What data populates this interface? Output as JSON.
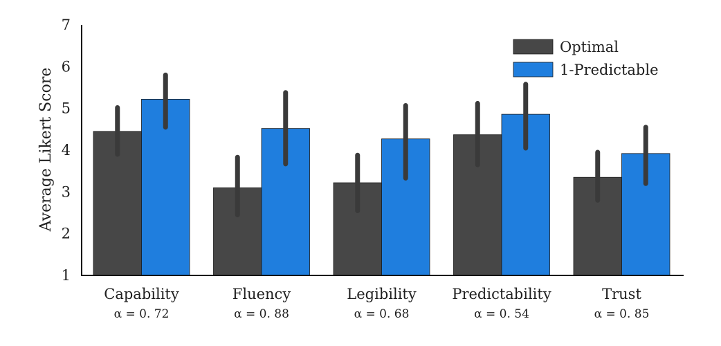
{
  "chart_data": {
    "type": "bar",
    "title": "",
    "xlabel": "",
    "ylabel": "Average Likert Score",
    "ylim": [
      1,
      7
    ],
    "yticks": [
      1,
      2,
      3,
      4,
      5,
      6,
      7
    ],
    "grid": false,
    "legend_position": "top-right",
    "categories": [
      "Capability",
      "Fluency",
      "Legibility",
      "Predictability",
      "Trust"
    ],
    "category_sublabels": [
      "α = 0. 72",
      "α = 0. 88",
      "α = 0. 68",
      "α = 0. 54",
      "α = 0. 85"
    ],
    "series": [
      {
        "name": "Optimal",
        "color": "#474747",
        "values": [
          4.45,
          3.1,
          3.22,
          4.37,
          3.35
        ],
        "error_low": [
          3.9,
          2.45,
          2.55,
          3.65,
          2.8
        ],
        "error_high": [
          5.02,
          3.83,
          3.88,
          5.12,
          3.95
        ]
      },
      {
        "name": "1-Predictable",
        "color": "#1f7ede",
        "values": [
          5.22,
          4.52,
          4.27,
          4.86,
          3.92
        ],
        "error_low": [
          4.55,
          3.67,
          3.33,
          4.05,
          3.2
        ],
        "error_high": [
          5.8,
          5.38,
          5.07,
          5.58,
          4.55
        ]
      }
    ]
  }
}
